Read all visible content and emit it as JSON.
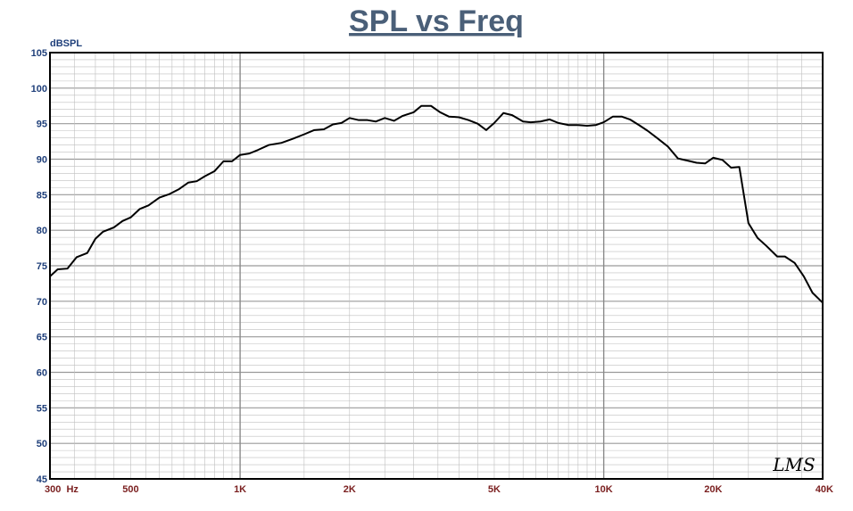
{
  "chart_data": {
    "type": "line",
    "title": "SPL vs Freq",
    "ylabel": "dBSPL",
    "xlabel": "",
    "x_scale": "log",
    "xlim": [
      300,
      40000
    ],
    "ylim": [
      45,
      105
    ],
    "yticks": [
      45,
      50,
      55,
      60,
      65,
      70,
      75,
      80,
      85,
      90,
      95,
      100,
      105
    ],
    "xticks": [
      {
        "value": 300,
        "label": "300  Hz"
      },
      {
        "value": 500,
        "label": "500"
      },
      {
        "value": 1000,
        "label": "1K"
      },
      {
        "value": 2000,
        "label": "2K"
      },
      {
        "value": 5000,
        "label": "5K"
      },
      {
        "value": 10000,
        "label": "10K"
      },
      {
        "value": 20000,
        "label": "20K"
      },
      {
        "value": 40000,
        "label": "40K"
      }
    ],
    "grid": true,
    "watermark": "LMS",
    "colors": {
      "title": "#4a5f78",
      "line": "#000000",
      "grid": "#bfbfbf",
      "ytick": "#1f3f7a",
      "xtick": "#7a1f1f"
    },
    "series": [
      {
        "x": [
          300,
          315,
          335,
          355,
          380,
          400,
          420,
          450,
          475,
          500,
          530,
          560,
          600,
          640,
          680,
          720,
          760,
          800,
          850,
          900,
          950,
          1000,
          1060,
          1120,
          1200,
          1300,
          1400,
          1500,
          1600,
          1700,
          1800,
          1900,
          2000,
          2120,
          2240,
          2360,
          2500,
          2650,
          2800,
          3000,
          3150,
          3350,
          3550,
          3750,
          4000,
          4250,
          4500,
          4750,
          5000,
          5300,
          5600,
          6000,
          6300,
          6700,
          7100,
          7500,
          8000,
          8500,
          9000,
          9500,
          10000,
          10600,
          11200,
          11800,
          12500,
          13200,
          14000,
          15000,
          16000,
          17000,
          18000,
          19000,
          20000,
          21200,
          22400,
          23600,
          25000,
          26500,
          28000,
          30000,
          31500,
          33500,
          35500,
          37500,
          40000
        ],
        "values": [
          73.5,
          74.5,
          74.6,
          76.2,
          76.8,
          78.8,
          79.8,
          80.4,
          81.3,
          81.8,
          83.0,
          83.5,
          84.6,
          85.1,
          85.8,
          86.7,
          86.9,
          87.6,
          88.3,
          89.7,
          89.7,
          90.6,
          90.8,
          91.3,
          92.0,
          92.3,
          92.9,
          93.5,
          94.1,
          94.2,
          94.9,
          95.1,
          95.8,
          95.5,
          95.5,
          95.3,
          95.8,
          95.4,
          96.1,
          96.6,
          97.5,
          97.5,
          96.6,
          96.0,
          95.9,
          95.5,
          95.0,
          94.1,
          95.1,
          96.5,
          96.2,
          95.3,
          95.2,
          95.3,
          95.6,
          95.1,
          94.8,
          94.8,
          94.7,
          94.8,
          95.2,
          96.0,
          96.0,
          95.6,
          94.8,
          94.0,
          93.0,
          91.8,
          90.1,
          89.8,
          89.5,
          89.4,
          90.2,
          89.9,
          88.8,
          88.9,
          81.0,
          78.9,
          77.8,
          76.3,
          76.3,
          75.4,
          73.5,
          71.2,
          69.8
        ]
      }
    ]
  }
}
